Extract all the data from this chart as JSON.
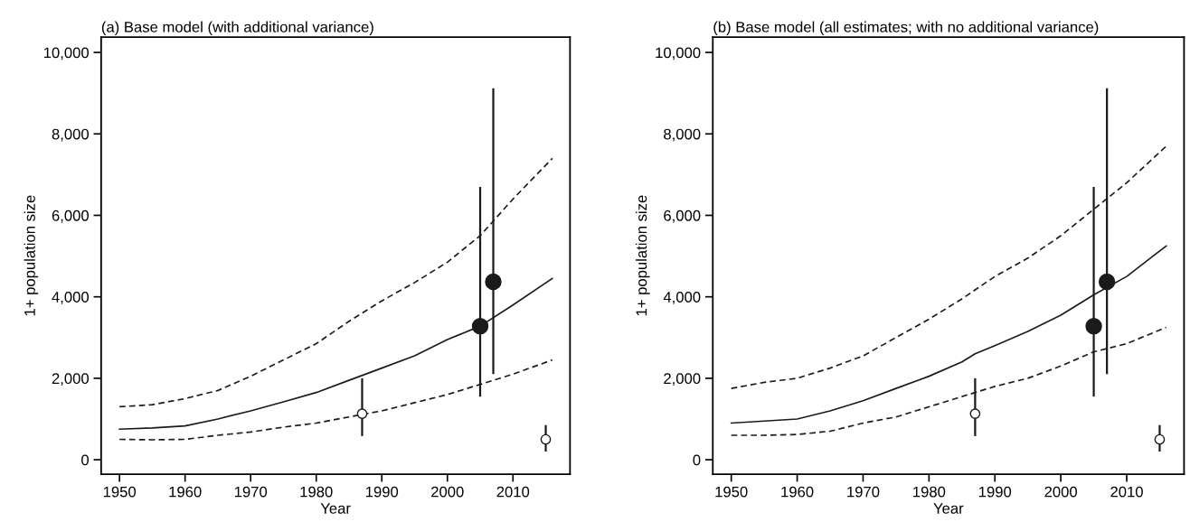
{
  "chart_data": [
    {
      "type": "line",
      "title": "(a) Base model (with additional variance)",
      "xlabel": "Year",
      "ylabel": "1+ population size",
      "xlim": [
        1947.2,
        2018.7
      ],
      "ylim": [
        -355,
        10375
      ],
      "xticks": [
        1950,
        1960,
        1970,
        1980,
        1990,
        2000,
        2010
      ],
      "yticks": [
        {
          "value": 0,
          "label": "0"
        },
        {
          "value": 2000,
          "label": "2,000"
        },
        {
          "value": 4000,
          "label": "4,000"
        },
        {
          "value": 6000,
          "label": "6,000"
        },
        {
          "value": 8000,
          "label": "8,000"
        },
        {
          "value": 10000,
          "label": "10,000"
        }
      ],
      "grid": false,
      "legend": false,
      "series": [
        {
          "line_style": "dashed",
          "color": "#1a1a1a",
          "x": [
            1950,
            1955,
            1960,
            1965,
            1970,
            1975,
            1980,
            1985,
            1990,
            1995,
            2000,
            2005,
            2010,
            2016
          ],
          "values": [
            1300,
            1350,
            1500,
            1700,
            2050,
            2450,
            2850,
            3400,
            3900,
            4350,
            4850,
            5500,
            6400,
            7400
          ]
        },
        {
          "line_style": "solid",
          "color": "#1a1a1a",
          "x": [
            1950,
            1955,
            1960,
            1965,
            1970,
            1975,
            1980,
            1985,
            1990,
            1995,
            2000,
            2005,
            2010,
            2016
          ],
          "values": [
            750,
            780,
            830,
            1000,
            1200,
            1420,
            1650,
            1950,
            2250,
            2550,
            2950,
            3280,
            3800,
            4450
          ]
        },
        {
          "line_style": "dashed",
          "color": "#1a1a1a",
          "x": [
            1950,
            1955,
            1960,
            1965,
            1970,
            1975,
            1980,
            1985,
            1990,
            1995,
            2000,
            2005,
            2010,
            2016
          ],
          "values": [
            500,
            490,
            500,
            600,
            680,
            800,
            900,
            1050,
            1200,
            1400,
            1600,
            1850,
            2100,
            2450
          ]
        },
        {
          "type": "scatter",
          "marker": "circle",
          "color": "#1a1a1a",
          "x": [
            2005,
            2007
          ],
          "values": [
            3280,
            4370
          ],
          "errors": [
            [
              1550,
              6700
            ],
            [
              2100,
              9120
            ]
          ]
        },
        {
          "type": "scatter",
          "marker": "circle",
          "color": "#1a1a1a",
          "x": [
            1987,
            2015
          ],
          "values": [
            1130,
            500
          ],
          "errors": [
            [
              580,
              2000
            ],
            [
              200,
              850
            ]
          ]
        }
      ]
    },
    {
      "type": "line",
      "title": "(b) Base model (all estimates; with no additional variance)",
      "xlabel": "Year",
      "ylabel": "1+ population size",
      "xlim": [
        1947.2,
        2018.7
      ],
      "ylim": [
        -355,
        10375
      ],
      "xticks": [
        1950,
        1960,
        1970,
        1980,
        1990,
        2000,
        2010
      ],
      "yticks": [
        {
          "value": 0,
          "label": "0"
        },
        {
          "value": 2000,
          "label": "2,000"
        },
        {
          "value": 4000,
          "label": "4,000"
        },
        {
          "value": 6000,
          "label": "6,000"
        },
        {
          "value": 8000,
          "label": "8,000"
        },
        {
          "value": 10000,
          "label": "10,000"
        }
      ],
      "grid": false,
      "legend": false,
      "series": [
        {
          "line_style": "dashed",
          "color": "#1a1a1a",
          "x": [
            1950,
            1955,
            1960,
            1965,
            1970,
            1975,
            1980,
            1985,
            1990,
            1995,
            2000,
            2005,
            2010,
            2016
          ],
          "values": [
            1750,
            1900,
            2000,
            2250,
            2550,
            3000,
            3450,
            3950,
            4500,
            4950,
            5500,
            6150,
            6800,
            7700
          ]
        },
        {
          "line_style": "solid",
          "color": "#1a1a1a",
          "x": [
            1950,
            1955,
            1960,
            1965,
            1970,
            1975,
            1980,
            1985,
            1987,
            1990,
            1995,
            2000,
            2005,
            2010,
            2016
          ],
          "values": [
            900,
            950,
            1000,
            1200,
            1450,
            1750,
            2050,
            2400,
            2600,
            2800,
            3150,
            3550,
            4050,
            4500,
            5250
          ]
        },
        {
          "line_style": "dashed",
          "color": "#1a1a1a",
          "x": [
            1950,
            1955,
            1960,
            1965,
            1970,
            1975,
            1980,
            1985,
            1990,
            1995,
            2000,
            2005,
            2010,
            2016
          ],
          "values": [
            600,
            600,
            620,
            700,
            900,
            1050,
            1300,
            1550,
            1800,
            2000,
            2300,
            2650,
            2850,
            3250
          ]
        },
        {
          "type": "scatter",
          "marker": "circle",
          "color": "#1a1a1a",
          "x": [
            2005,
            2007
          ],
          "values": [
            3280,
            4370
          ],
          "errors": [
            [
              1550,
              6700
            ],
            [
              2100,
              9120
            ]
          ]
        },
        {
          "type": "scatter",
          "marker": "circle",
          "color": "#1a1a1a",
          "x": [
            1987,
            2015
          ],
          "values": [
            1130,
            500
          ],
          "errors": [
            [
              580,
              2000
            ],
            [
              200,
              850
            ]
          ]
        }
      ]
    }
  ]
}
